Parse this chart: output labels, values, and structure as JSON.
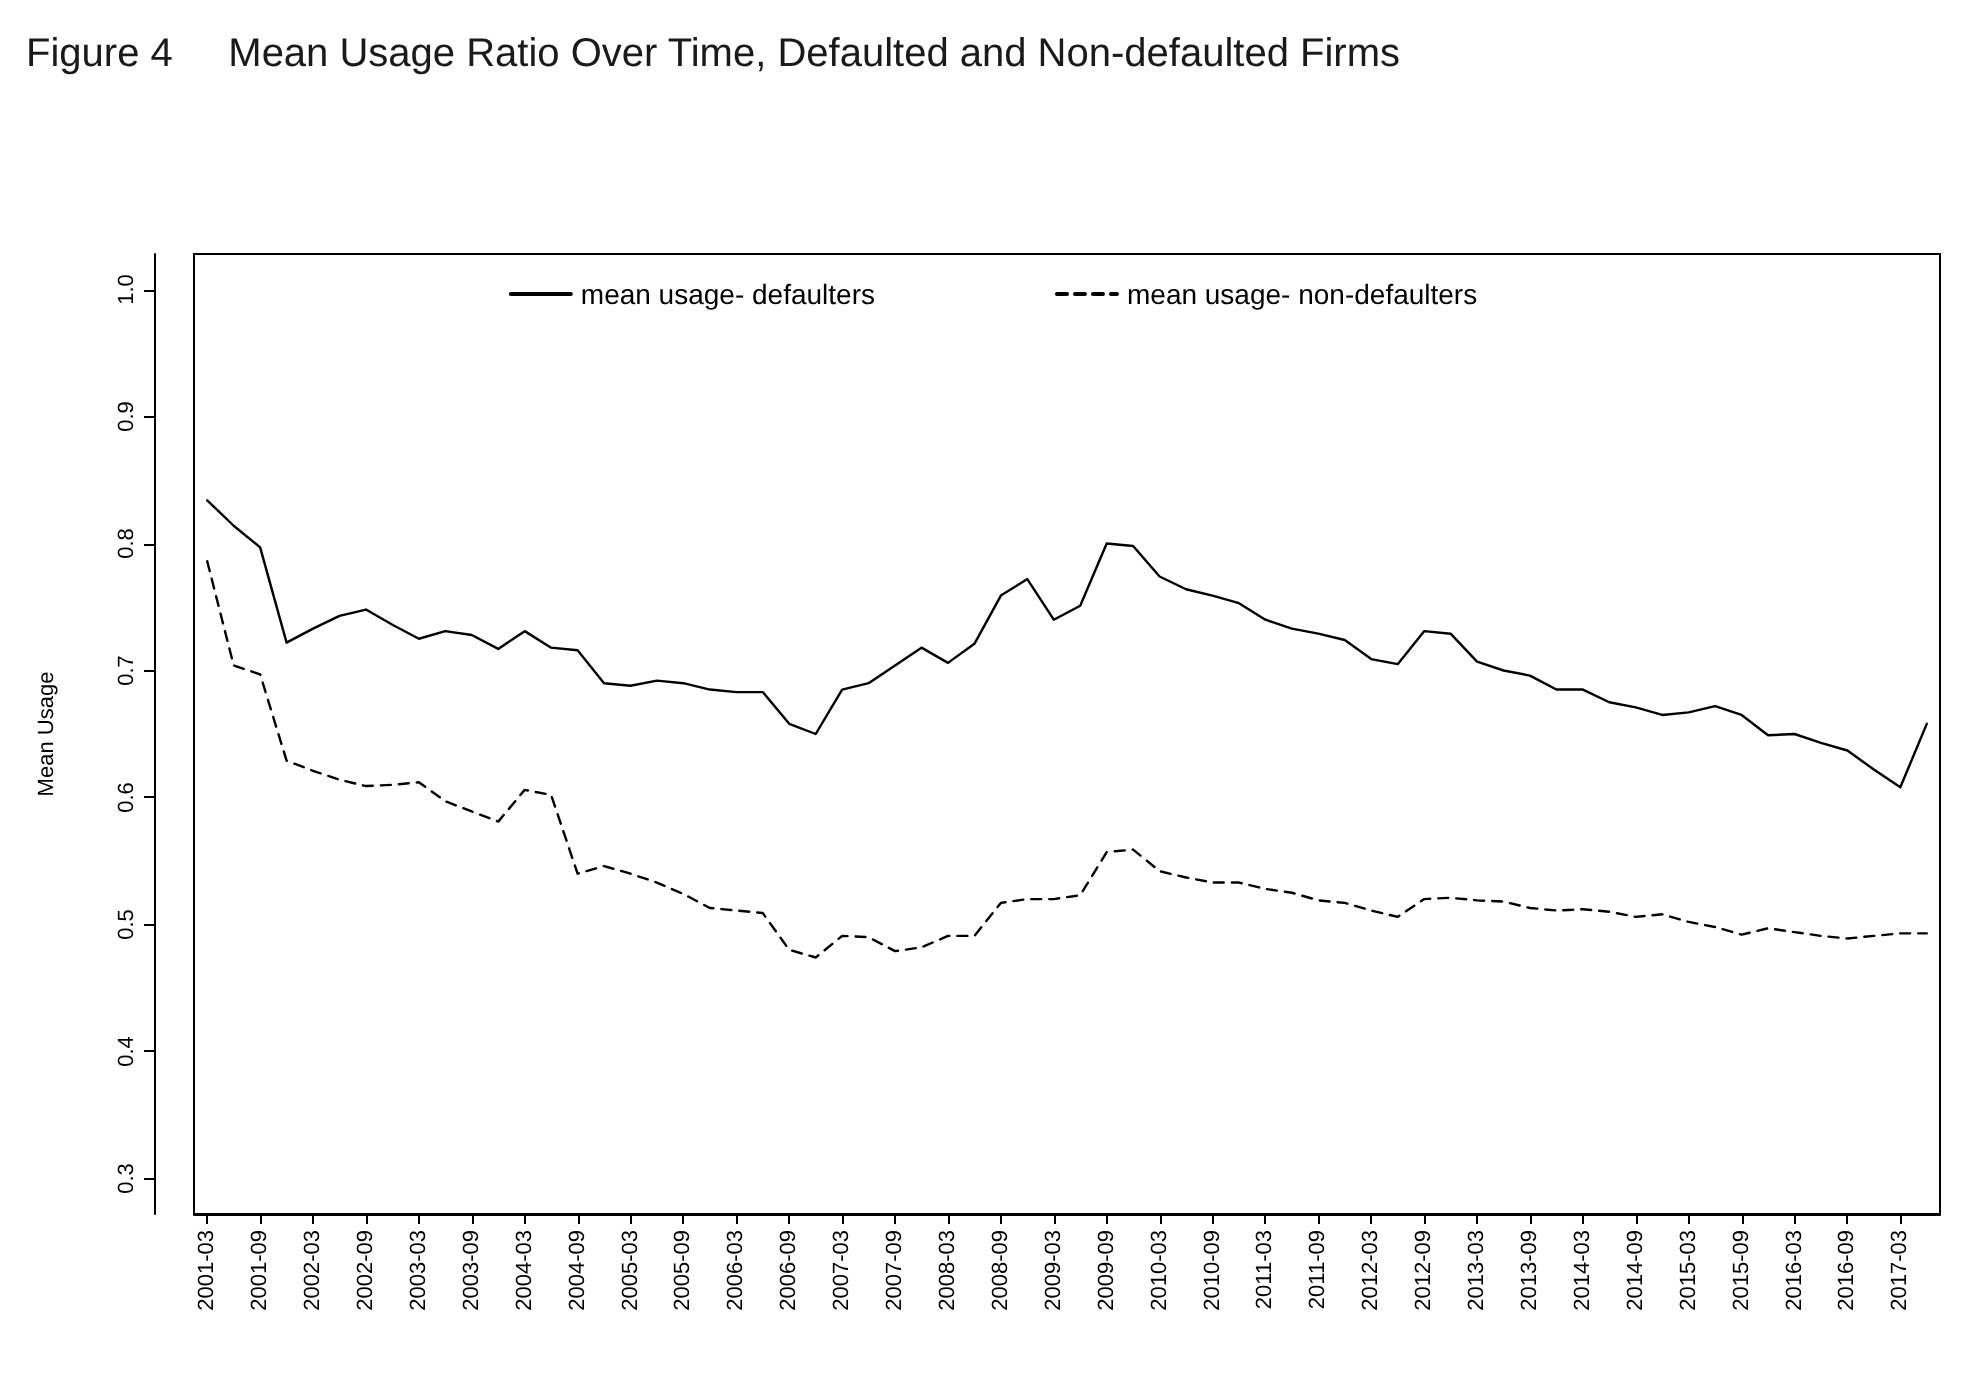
{
  "chart_data": {
    "type": "line",
    "title": "Figure 4     Mean Usage Ratio Over Time, Defaulted and Non-defaulted Firms",
    "ylabel": "Mean Usage",
    "categories": [
      "2001-03",
      null,
      "2001-09",
      null,
      "2002-03",
      null,
      "2002-09",
      null,
      "2003-03",
      null,
      "2003-09",
      null,
      "2004-03",
      null,
      "2004-09",
      null,
      "2005-03",
      null,
      "2005-09",
      null,
      "2006-03",
      null,
      "2006-09",
      null,
      "2007-03",
      null,
      "2007-09",
      null,
      "2008-03",
      null,
      "2008-09",
      null,
      "2009-03",
      null,
      "2009-09",
      null,
      "2010-03",
      null,
      "2010-09",
      null,
      "2011-03",
      null,
      "2011-09",
      null,
      "2012-03",
      null,
      "2012-09",
      null,
      "2013-03",
      null,
      "2013-09",
      null,
      "2014-03",
      null,
      "2014-09",
      null,
      "2015-03",
      null,
      "2015-09",
      null,
      "2016-03",
      null,
      "2016-09",
      null,
      "2017-03",
      null
    ],
    "series": [
      {
        "name": "mean usage- defaulters",
        "color": "#000000",
        "line_style": "solid",
        "values": [
          0.834,
          0.814,
          0.797,
          0.722,
          0.733,
          0.743,
          0.748,
          0.736,
          0.725,
          0.731,
          0.728,
          0.717,
          0.731,
          0.718,
          0.716,
          0.69,
          0.688,
          0.692,
          0.69,
          0.685,
          0.683,
          0.683,
          0.658,
          0.65,
          0.685,
          0.69,
          0.704,
          0.718,
          0.706,
          0.721,
          0.759,
          0.772,
          0.74,
          0.751,
          0.8,
          0.798,
          0.774,
          0.764,
          0.759,
          0.753,
          0.74,
          0.733,
          0.729,
          0.724,
          0.709,
          0.705,
          0.731,
          0.729,
          0.707,
          0.7,
          0.696,
          0.685,
          0.685,
          0.675,
          0.671,
          0.665,
          0.667,
          0.672,
          0.665,
          0.649,
          0.65,
          0.643,
          0.637,
          0.622,
          0.608,
          0.658
        ]
      },
      {
        "name": "mean usage- non-defaulters",
        "color": "#000000",
        "line_style": "dashed",
        "values": [
          0.786,
          0.704,
          0.697,
          0.629,
          0.621,
          0.614,
          0.609,
          0.61,
          0.612,
          0.597,
          0.589,
          0.581,
          0.606,
          0.602,
          0.54,
          0.546,
          0.54,
          0.533,
          0.524,
          0.513,
          0.511,
          0.509,
          0.48,
          0.474,
          0.491,
          0.49,
          0.479,
          0.482,
          0.491,
          0.491,
          0.517,
          0.52,
          0.52,
          0.523,
          0.557,
          0.559,
          0.542,
          0.537,
          0.533,
          0.533,
          0.528,
          0.525,
          0.519,
          0.517,
          0.511,
          0.506,
          0.52,
          0.521,
          0.519,
          0.518,
          0.513,
          0.511,
          0.512,
          0.51,
          0.506,
          0.508,
          0.502,
          0.498,
          0.492,
          0.497,
          0.494,
          0.491,
          0.489,
          0.491,
          0.493,
          0.493
        ]
      }
    ],
    "ylim": [
      0.272,
      1.028
    ],
    "yticks": [
      0.3,
      0.4,
      0.5,
      0.6,
      0.7,
      0.8,
      0.9,
      {
        "value": 1,
        "label": "1.0"
      }
    ],
    "grid": false,
    "legend": "top",
    "marker": "none"
  }
}
